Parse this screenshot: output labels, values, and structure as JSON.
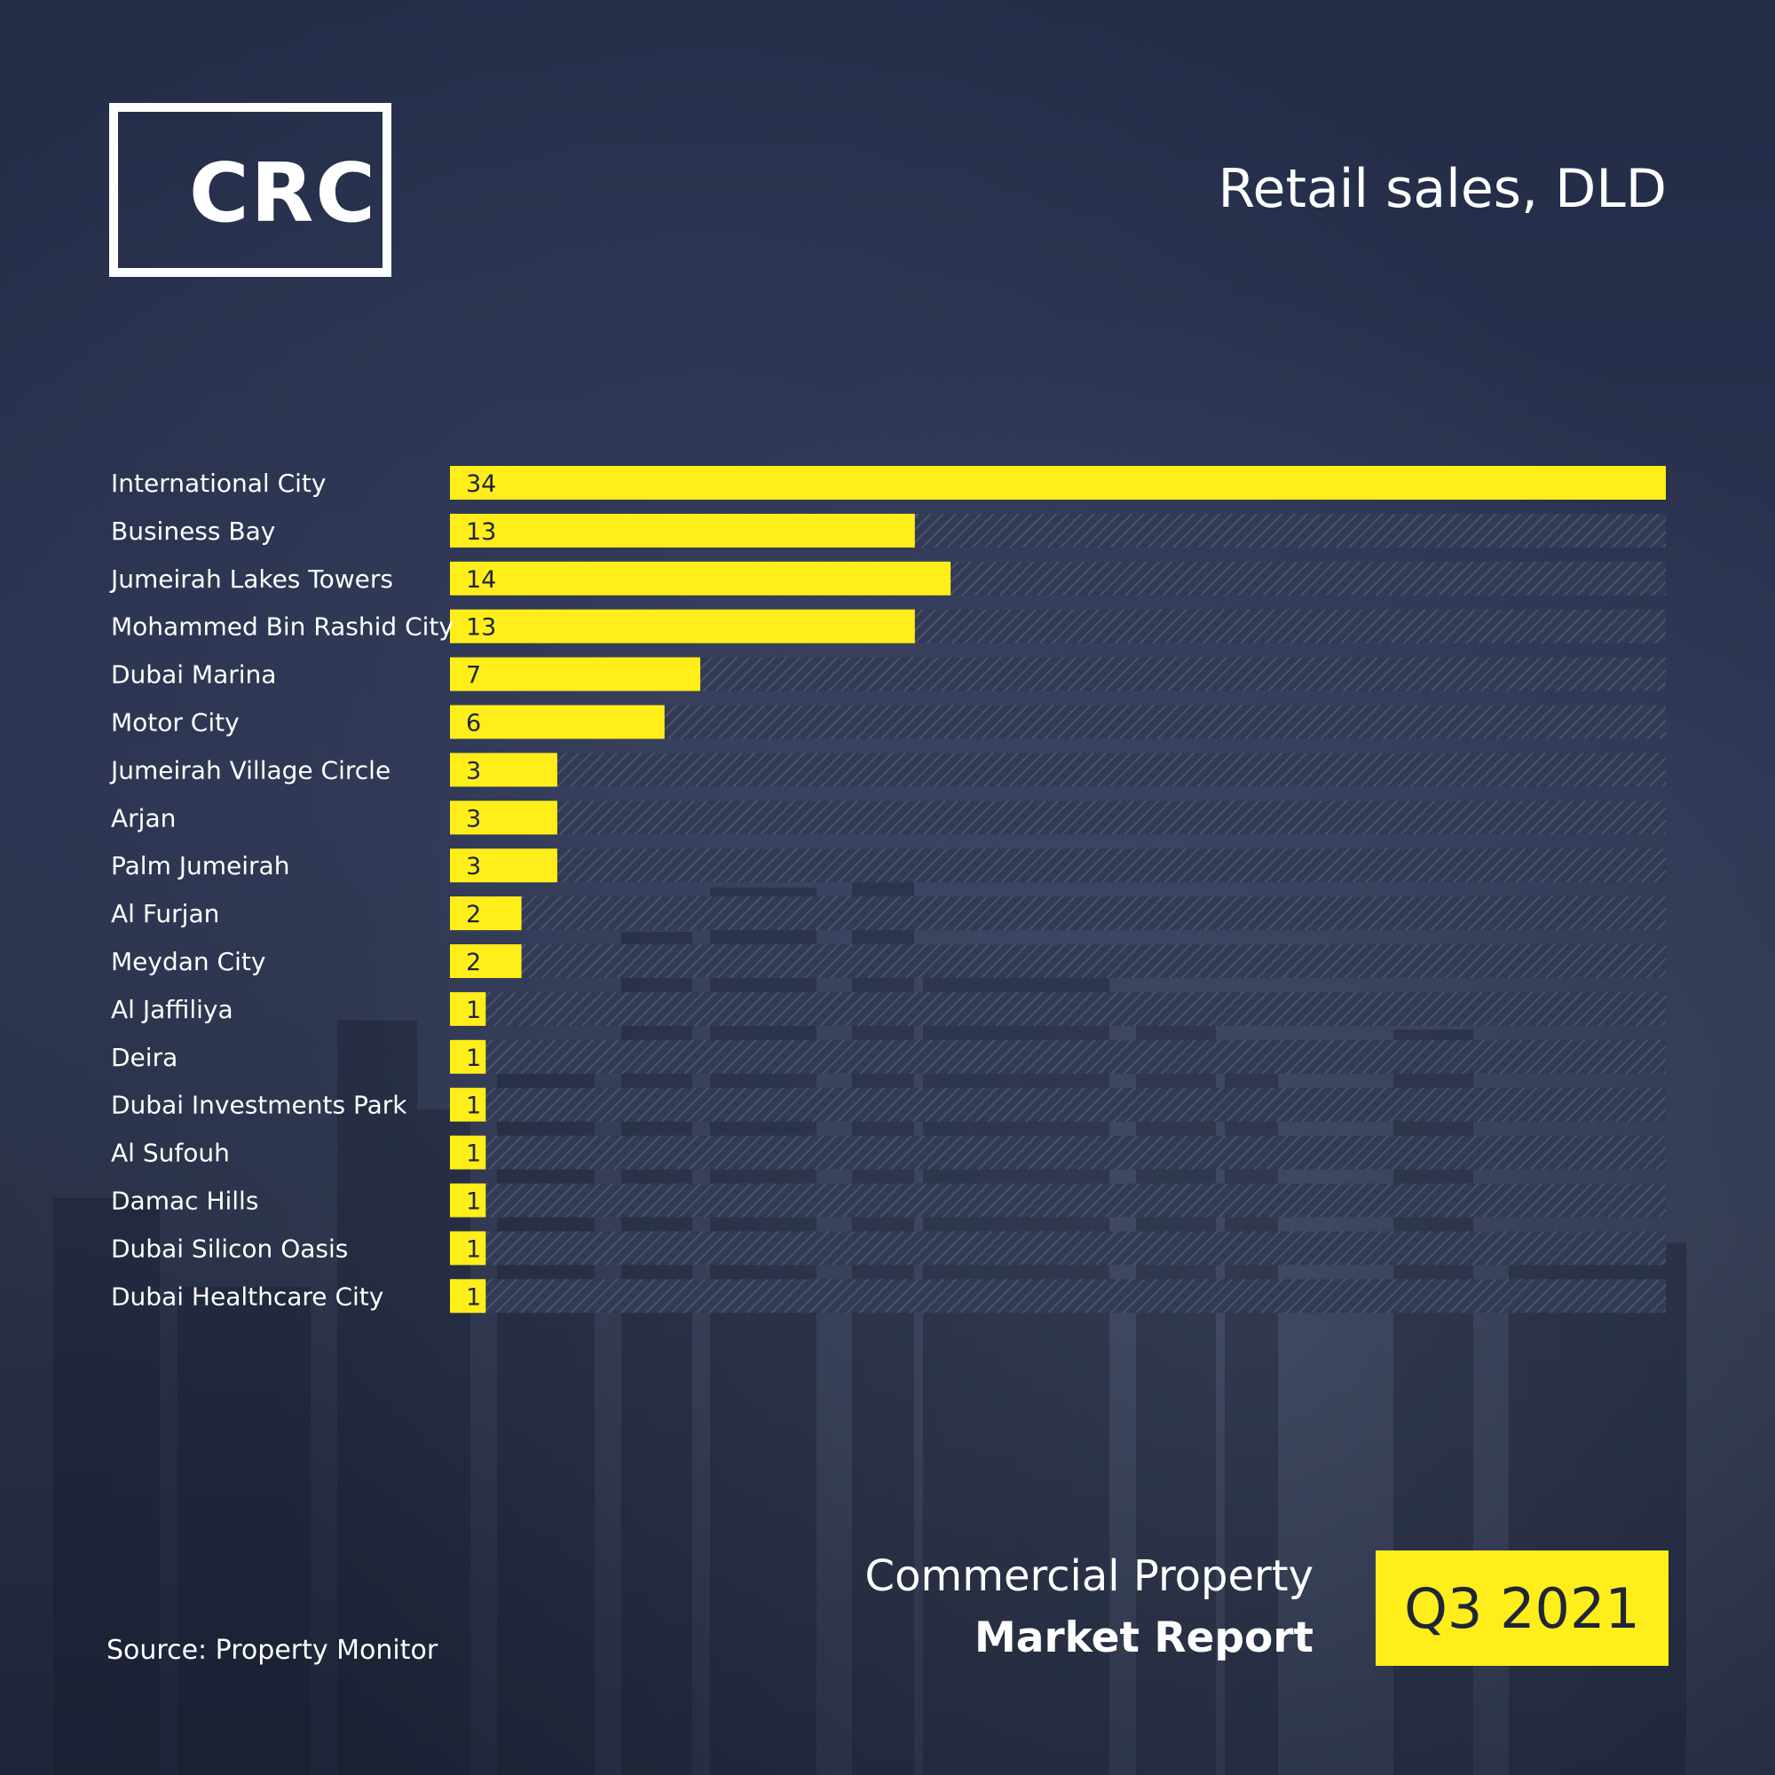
{
  "brand": {
    "logo_text": "CRC"
  },
  "chart_data": {
    "type": "bar",
    "orientation": "horizontal",
    "title": "Retail sales, DLD",
    "categories": [
      "International City",
      "Business Bay",
      "Jumeirah Lakes Towers",
      "Mohammed Bin Rashid City",
      "Dubai Marina",
      "Motor City",
      "Jumeirah Village Circle",
      "Arjan",
      "Palm Jumeirah",
      "Al Furjan",
      "Meydan City",
      "Al Jaffiliya",
      "Deira",
      "Dubai Investments Park",
      "Al Sufouh",
      "Damac Hills",
      "Dubai Silicon Oasis",
      "Dubai Healthcare City"
    ],
    "values": [
      34,
      13,
      14,
      13,
      7,
      6,
      3,
      3,
      3,
      2,
      2,
      1,
      1,
      1,
      1,
      1,
      1,
      1
    ],
    "xlim": [
      0,
      34
    ],
    "xlabel": "",
    "ylabel": "",
    "grid": false,
    "legend": "none",
    "colors": {
      "bar": "#ffee1a",
      "track": "#3e4660",
      "value_text": "#1f2538"
    }
  },
  "footer": {
    "source": "Source: Property Monitor",
    "report_line1": "Commercial Property",
    "report_line2": "Market Report",
    "period": "Q3 2021"
  }
}
